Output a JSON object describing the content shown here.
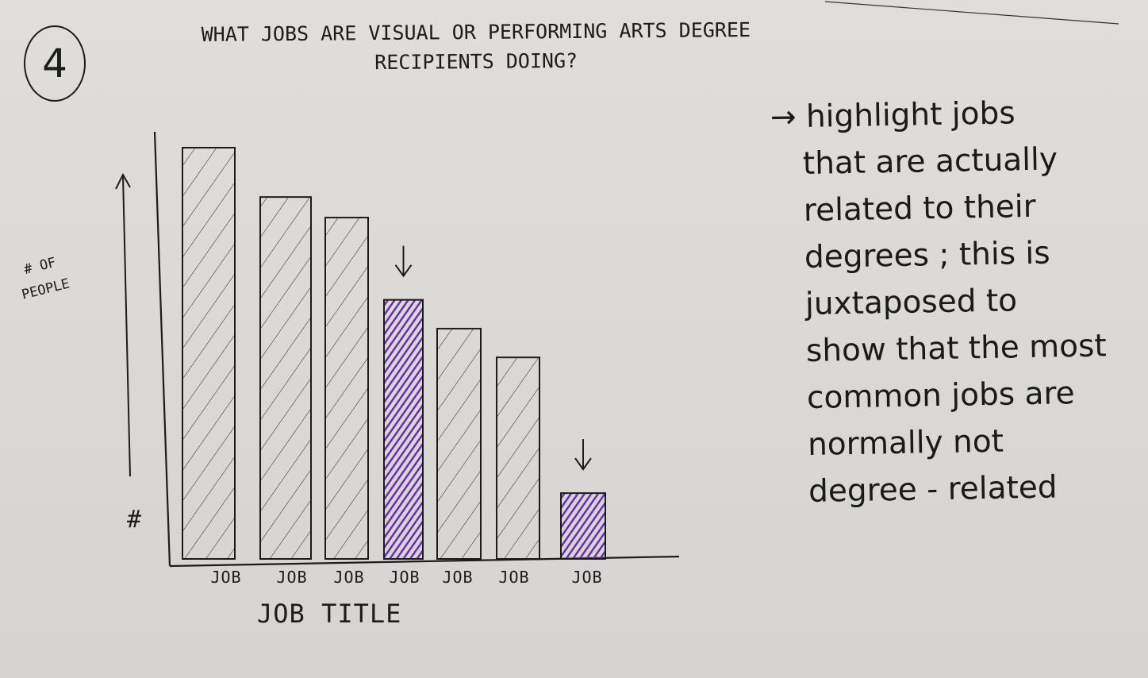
{
  "step_number": "4",
  "chart_data": {
    "type": "bar",
    "title": "WHAT JOBS ARE VISUAL OR PERFORMING ARTS DEGREE RECIPIENTS DOING?",
    "xlabel": "JOB TITLE",
    "ylabel": "# OF PEOPLE",
    "y_tick_label": "#",
    "categories": [
      "JOB",
      "JOB",
      "JOB",
      "JOB",
      "JOB",
      "JOB",
      "JOB"
    ],
    "values": [
      100,
      88,
      83,
      63,
      56,
      49,
      16
    ],
    "highlighted": [
      false,
      false,
      false,
      true,
      false,
      false,
      true
    ],
    "ylim": [
      0,
      110
    ],
    "grid": false,
    "colors": {
      "highlight": "#6a2fb0",
      "outline": "#1c1c1c"
    }
  },
  "annotation": {
    "arrow_glyph": "→",
    "lines": [
      "highlight jobs",
      "that are actually",
      "related to their",
      "degrees ; this is",
      "juxtaposed to",
      "show that the most",
      "common jobs are",
      "normally not",
      "degree - related"
    ]
  }
}
